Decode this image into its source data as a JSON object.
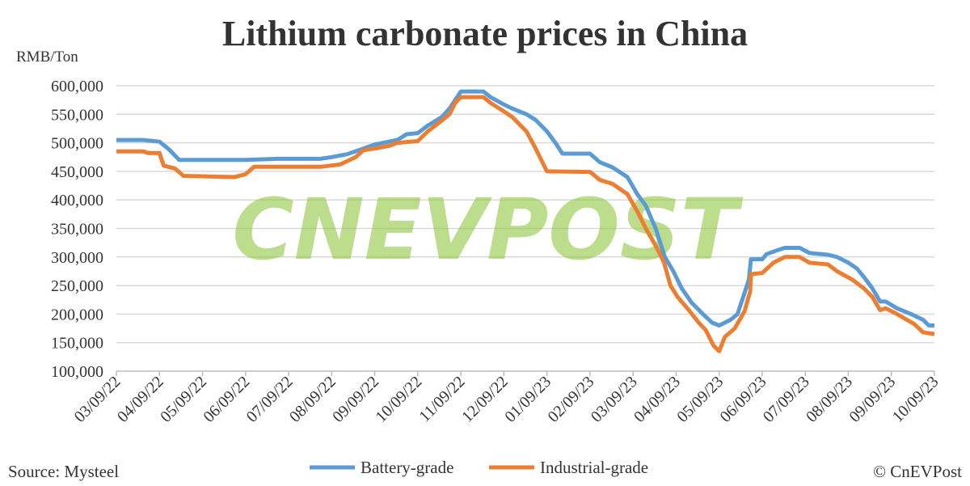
{
  "chart_data": {
    "type": "line",
    "title": "Lithium carbonate prices in China",
    "ylabel": "RMB/Ton",
    "ylim": [
      100000,
      600000
    ],
    "yticks": [
      "100,000",
      "150,000",
      "200,000",
      "250,000",
      "300,000",
      "350,000",
      "400,000",
      "450,000",
      "500,000",
      "550,000",
      "600,000"
    ],
    "xticks": [
      "03/09/22",
      "04/09/22",
      "05/09/22",
      "06/09/22",
      "07/09/22",
      "08/09/22",
      "09/09/22",
      "10/09/22",
      "11/09/22",
      "12/09/22",
      "01/09/23",
      "02/09/23",
      "03/09/23",
      "04/09/23",
      "05/09/23",
      "06/09/23",
      "07/09/23",
      "08/09/23",
      "09/09/23",
      "10/09/23"
    ],
    "grid": true,
    "legend_placement": "bottom",
    "source": "Source: Mysteel",
    "copyright": "© CnEVPost",
    "watermark": "CNEVPOST",
    "series": [
      {
        "name": "Battery-grade",
        "color": "#5b9bd5",
        "points": [
          [
            "03/09/22",
            505000
          ],
          [
            "03/28/22",
            505000
          ],
          [
            "04/09/22",
            502000
          ],
          [
            "04/16/22",
            488000
          ],
          [
            "04/23/22",
            470000
          ],
          [
            "06/09/22",
            470000
          ],
          [
            "07/01/22",
            472000
          ],
          [
            "08/01/22",
            472000
          ],
          [
            "08/09/22",
            475000
          ],
          [
            "08/20/22",
            480000
          ],
          [
            "09/01/22",
            490000
          ],
          [
            "09/09/22",
            497000
          ],
          [
            "09/25/22",
            505000
          ],
          [
            "10/01/22",
            515000
          ],
          [
            "10/09/22",
            517000
          ],
          [
            "10/16/22",
            530000
          ],
          [
            "10/26/22",
            545000
          ],
          [
            "11/01/22",
            560000
          ],
          [
            "11/05/22",
            575000
          ],
          [
            "11/09/22",
            590000
          ],
          [
            "11/25/22",
            590000
          ],
          [
            "11/30/22",
            580000
          ],
          [
            "12/09/22",
            567000
          ],
          [
            "12/15/22",
            560000
          ],
          [
            "12/25/22",
            550000
          ],
          [
            "01/01/23",
            540000
          ],
          [
            "01/09/23",
            520000
          ],
          [
            "01/15/23",
            500000
          ],
          [
            "01/20/23",
            481000
          ],
          [
            "02/09/23",
            481000
          ],
          [
            "02/16/23",
            466000
          ],
          [
            "02/25/23",
            457000
          ],
          [
            "03/05/23",
            440000
          ],
          [
            "03/12/23",
            410000
          ],
          [
            "03/18/23",
            390000
          ],
          [
            "03/25/23",
            350000
          ],
          [
            "04/01/23",
            300000
          ],
          [
            "04/07/23",
            275000
          ],
          [
            "04/13/23",
            245000
          ],
          [
            "04/20/23",
            220000
          ],
          [
            "04/28/23",
            200000
          ],
          [
            "05/04/23",
            185000
          ],
          [
            "05/09/23",
            180000
          ],
          [
            "05/17/23",
            190000
          ],
          [
            "05/22/23",
            200000
          ],
          [
            "05/26/23",
            230000
          ],
          [
            "05/30/23",
            260000
          ],
          [
            "06/01/23",
            296000
          ],
          [
            "06/09/23",
            296000
          ],
          [
            "06/12/23",
            305000
          ],
          [
            "06/20/23",
            312000
          ],
          [
            "06/25/23",
            316000
          ],
          [
            "07/05/23",
            316000
          ],
          [
            "07/12/23",
            307000
          ],
          [
            "07/25/23",
            304000
          ],
          [
            "08/01/23",
            300000
          ],
          [
            "08/09/23",
            290000
          ],
          [
            "08/15/23",
            280000
          ],
          [
            "08/20/23",
            265000
          ],
          [
            "08/26/23",
            245000
          ],
          [
            "09/01/23",
            222000
          ],
          [
            "09/05/23",
            222000
          ],
          [
            "09/13/23",
            210000
          ],
          [
            "09/23/23",
            200000
          ],
          [
            "10/01/23",
            190000
          ],
          [
            "10/05/23",
            180000
          ],
          [
            "10/09/23",
            180000
          ]
        ]
      },
      {
        "name": "Industrial-grade",
        "color": "#ed7d31",
        "points": [
          [
            "03/09/22",
            485000
          ],
          [
            "03/28/22",
            485000
          ],
          [
            "04/01/22",
            482000
          ],
          [
            "04/09/22",
            482000
          ],
          [
            "04/12/22",
            460000
          ],
          [
            "04/20/22",
            455000
          ],
          [
            "04/26/22",
            442000
          ],
          [
            "06/01/22",
            440000
          ],
          [
            "06/09/22",
            445000
          ],
          [
            "06/15/22",
            458000
          ],
          [
            "08/01/22",
            458000
          ],
          [
            "08/15/22",
            462000
          ],
          [
            "08/26/22",
            475000
          ],
          [
            "09/01/22",
            487000
          ],
          [
            "09/09/22",
            490000
          ],
          [
            "09/20/22",
            495000
          ],
          [
            "09/25/22",
            500000
          ],
          [
            "10/09/22",
            503000
          ],
          [
            "10/16/22",
            520000
          ],
          [
            "10/24/22",
            535000
          ],
          [
            "11/01/22",
            550000
          ],
          [
            "11/05/22",
            570000
          ],
          [
            "11/09/22",
            580000
          ],
          [
            "11/25/22",
            580000
          ],
          [
            "11/30/22",
            570000
          ],
          [
            "12/09/22",
            555000
          ],
          [
            "12/15/22",
            545000
          ],
          [
            "12/25/22",
            520000
          ],
          [
            "01/01/23",
            490000
          ],
          [
            "01/05/23",
            470000
          ],
          [
            "01/09/23",
            450000
          ],
          [
            "02/09/23",
            449000
          ],
          [
            "02/16/23",
            435000
          ],
          [
            "02/25/23",
            428000
          ],
          [
            "03/05/23",
            410000
          ],
          [
            "03/12/23",
            380000
          ],
          [
            "03/18/23",
            350000
          ],
          [
            "03/25/23",
            320000
          ],
          [
            "03/31/23",
            290000
          ],
          [
            "04/05/23",
            250000
          ],
          [
            "04/10/23",
            230000
          ],
          [
            "04/17/23",
            210000
          ],
          [
            "04/25/23",
            185000
          ],
          [
            "04/30/23",
            172000
          ],
          [
            "05/05/23",
            145000
          ],
          [
            "05/09/23",
            135000
          ],
          [
            "05/13/23",
            160000
          ],
          [
            "05/20/23",
            175000
          ],
          [
            "05/27/23",
            205000
          ],
          [
            "05/31/23",
            240000
          ],
          [
            "06/01/23",
            270000
          ],
          [
            "06/09/23",
            272000
          ],
          [
            "06/17/23",
            290000
          ],
          [
            "06/25/23",
            300000
          ],
          [
            "07/05/23",
            300000
          ],
          [
            "07/12/23",
            290000
          ],
          [
            "07/25/23",
            287000
          ],
          [
            "08/01/23",
            275000
          ],
          [
            "08/12/23",
            260000
          ],
          [
            "08/20/23",
            245000
          ],
          [
            "08/26/23",
            230000
          ],
          [
            "09/01/23",
            207000
          ],
          [
            "09/05/23",
            210000
          ],
          [
            "09/13/23",
            200000
          ],
          [
            "09/20/23",
            190000
          ],
          [
            "09/25/23",
            183000
          ],
          [
            "10/01/23",
            168000
          ],
          [
            "10/09/23",
            165000
          ]
        ]
      }
    ]
  }
}
